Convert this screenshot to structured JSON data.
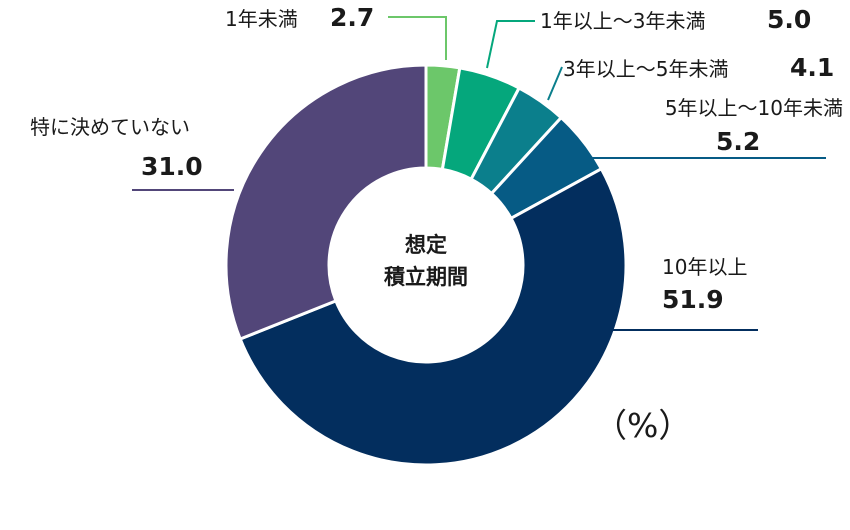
{
  "chart_data": {
    "type": "pie",
    "center_label": [
      "想定",
      "積立期間"
    ],
    "unit": "（%）",
    "slices": [
      {
        "label": "1年未満",
        "value": 2.7,
        "value_text": "2.7",
        "color": "#6cc76a"
      },
      {
        "label": "1年以上～3年未満",
        "value": 5.0,
        "value_text": "5.0",
        "color": "#05a77c"
      },
      {
        "label": "3年以上～5年未満",
        "value": 4.1,
        "value_text": "4.1",
        "color": "#0b7f8c"
      },
      {
        "label": "5年以上～10年未満",
        "value": 5.2,
        "value_text": "5.2",
        "color": "#065b85"
      },
      {
        "label": "10年以上",
        "value": 51.9,
        "value_text": "51.9",
        "color": "#032e5e"
      },
      {
        "label": "特に決めていない",
        "value": 31.0,
        "value_text": "31.0",
        "color": "#524679"
      }
    ]
  }
}
